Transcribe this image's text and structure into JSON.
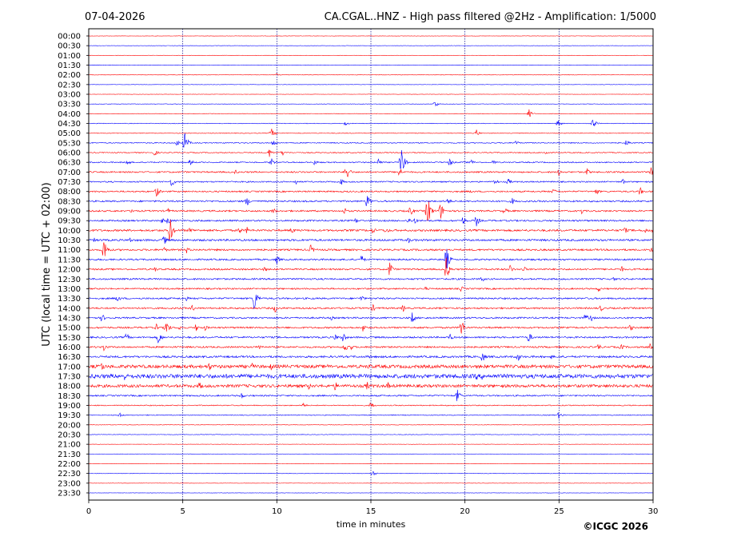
{
  "header": {
    "date": "07-04-2026",
    "title": "CA.CGAL..HNZ - High pass filtered @2Hz - Amplification: 1/5000"
  },
  "footer": {
    "copyright": "©ICGC 2026"
  },
  "chart_data": {
    "type": "line",
    "title": "CA.CGAL..HNZ - High pass filtered @2Hz - Amplification: 1/5000",
    "xlabel": "time in minutes",
    "ylabel": "UTC (local time = UTC + 02:00)",
    "xlim": [
      0,
      30
    ],
    "xticks": [
      0,
      5,
      10,
      15,
      20,
      25,
      30
    ],
    "grid": "vertical dotted at 5, 10, 15, 20, 25",
    "row_labels": [
      "00:00",
      "00:30",
      "01:00",
      "01:30",
      "02:00",
      "02:30",
      "03:00",
      "03:30",
      "04:00",
      "04:30",
      "05:00",
      "05:30",
      "06:00",
      "06:30",
      "07:00",
      "07:30",
      "08:00",
      "08:30",
      "09:00",
      "09:30",
      "10:00",
      "10:30",
      "11:00",
      "11:30",
      "12:00",
      "12:30",
      "13:00",
      "13:30",
      "14:00",
      "14:30",
      "15:00",
      "15:30",
      "16:00",
      "16:30",
      "17:00",
      "17:30",
      "18:00",
      "18:30",
      "19:00",
      "19:30",
      "20:00",
      "20:30",
      "21:00",
      "21:30",
      "22:00",
      "22:30",
      "23:00",
      "23:30"
    ],
    "series_colors": {
      "even_rows": "#ff0000",
      "odd_rows": "#0000ff"
    },
    "noise": [
      0.2,
      0.2,
      0.2,
      0.3,
      0.3,
      0.2,
      0.2,
      0.3,
      0.3,
      0.4,
      0.4,
      0.6,
      0.6,
      0.7,
      0.9,
      0.8,
      0.9,
      1.0,
      1.0,
      1.0,
      1.2,
      1.2,
      1.1,
      1.0,
      1.0,
      1.0,
      0.9,
      1.0,
      1.0,
      1.0,
      1.0,
      1.0,
      1.0,
      1.2,
      2.0,
      2.5,
      1.8,
      0.9,
      0.6,
      0.5,
      0.3,
      0.3,
      0.2,
      0.2,
      0.2,
      0.3,
      0.2,
      0.2
    ],
    "events": [
      {
        "row": 4,
        "t": 10.0,
        "a": 2
      },
      {
        "row": 7,
        "t": 18.4,
        "a": 5
      },
      {
        "row": 8,
        "t": 23.4,
        "a": 6
      },
      {
        "row": 9,
        "t": 13.6,
        "a": 4
      },
      {
        "row": 9,
        "t": 24.9,
        "a": 7
      },
      {
        "row": 9,
        "t": 26.8,
        "a": 8
      },
      {
        "row": 10,
        "t": 9.7,
        "a": 7
      },
      {
        "row": 10,
        "t": 20.6,
        "a": 5
      },
      {
        "row": 11,
        "t": 4.7,
        "a": 5
      },
      {
        "row": 11,
        "t": 5.1,
        "a": 14
      },
      {
        "row": 11,
        "t": 9.8,
        "a": 5
      },
      {
        "row": 11,
        "t": 22.7,
        "a": 4
      },
      {
        "row": 11,
        "t": 28.6,
        "a": 5
      },
      {
        "row": 12,
        "t": 3.5,
        "a": 5
      },
      {
        "row": 12,
        "t": 9.6,
        "a": 6
      },
      {
        "row": 12,
        "t": 10.3,
        "a": 4
      },
      {
        "row": 12,
        "t": 24.3,
        "a": 4
      },
      {
        "row": 13,
        "t": 2.0,
        "a": 6
      },
      {
        "row": 13,
        "t": 5.4,
        "a": 5
      },
      {
        "row": 13,
        "t": 9.7,
        "a": 6
      },
      {
        "row": 13,
        "t": 12.0,
        "a": 4
      },
      {
        "row": 13,
        "t": 15.4,
        "a": 6
      },
      {
        "row": 13,
        "t": 16.6,
        "a": 22
      },
      {
        "row": 13,
        "t": 19.2,
        "a": 6
      },
      {
        "row": 13,
        "t": 20.3,
        "a": 5
      },
      {
        "row": 13,
        "t": 21.5,
        "a": 4
      },
      {
        "row": 14,
        "t": 7.8,
        "a": 3
      },
      {
        "row": 14,
        "t": 13.7,
        "a": 14
      },
      {
        "row": 14,
        "t": 16.5,
        "a": 8
      },
      {
        "row": 14,
        "t": 25.0,
        "a": 5
      },
      {
        "row": 14,
        "t": 26.5,
        "a": 5
      },
      {
        "row": 14,
        "t": 29.9,
        "a": 6
      },
      {
        "row": 15,
        "t": 4.4,
        "a": 7
      },
      {
        "row": 15,
        "t": 11.0,
        "a": 4
      },
      {
        "row": 15,
        "t": 13.4,
        "a": 5
      },
      {
        "row": 15,
        "t": 21.6,
        "a": 5
      },
      {
        "row": 15,
        "t": 22.3,
        "a": 5
      },
      {
        "row": 15,
        "t": 28.4,
        "a": 4
      },
      {
        "row": 16,
        "t": 3.6,
        "a": 8
      },
      {
        "row": 16,
        "t": 20.3,
        "a": 3
      },
      {
        "row": 16,
        "t": 24.7,
        "a": 4
      },
      {
        "row": 16,
        "t": 27.0,
        "a": 5
      },
      {
        "row": 16,
        "t": 29.3,
        "a": 6
      },
      {
        "row": 17,
        "t": 8.4,
        "a": 7
      },
      {
        "row": 17,
        "t": 14.8,
        "a": 11
      },
      {
        "row": 17,
        "t": 19.1,
        "a": 5
      },
      {
        "row": 17,
        "t": 22.5,
        "a": 5
      },
      {
        "row": 18,
        "t": 2.3,
        "a": 4
      },
      {
        "row": 18,
        "t": 4.2,
        "a": 4
      },
      {
        "row": 18,
        "t": 9.8,
        "a": 5
      },
      {
        "row": 18,
        "t": 13.6,
        "a": 5
      },
      {
        "row": 18,
        "t": 17.1,
        "a": 7
      },
      {
        "row": 18,
        "t": 18.0,
        "a": 24
      },
      {
        "row": 18,
        "t": 18.7,
        "a": 12
      },
      {
        "row": 18,
        "t": 22.1,
        "a": 5
      },
      {
        "row": 18,
        "t": 26.2,
        "a": 4
      },
      {
        "row": 19,
        "t": 3.9,
        "a": 4
      },
      {
        "row": 19,
        "t": 4.2,
        "a": 6
      },
      {
        "row": 19,
        "t": 14.2,
        "a": 4
      },
      {
        "row": 19,
        "t": 17.0,
        "a": 5
      },
      {
        "row": 19,
        "t": 17.3,
        "a": 5
      },
      {
        "row": 19,
        "t": 19.9,
        "a": 6
      },
      {
        "row": 19,
        "t": 20.6,
        "a": 8
      },
      {
        "row": 20,
        "t": 4.3,
        "a": 20
      },
      {
        "row": 20,
        "t": 5.4,
        "a": 5
      },
      {
        "row": 20,
        "t": 8.0,
        "a": 5
      },
      {
        "row": 20,
        "t": 8.4,
        "a": 5
      },
      {
        "row": 20,
        "t": 10.8,
        "a": 5
      },
      {
        "row": 20,
        "t": 15.1,
        "a": 5
      },
      {
        "row": 20,
        "t": 15.8,
        "a": 5
      },
      {
        "row": 20,
        "t": 28.5,
        "a": 5
      },
      {
        "row": 20,
        "t": 29.6,
        "a": 4
      },
      {
        "row": 20,
        "t": 30.0,
        "a": 4
      },
      {
        "row": 21,
        "t": 0.3,
        "a": 3
      },
      {
        "row": 21,
        "t": 2.2,
        "a": 4
      },
      {
        "row": 21,
        "t": 4.0,
        "a": 7
      },
      {
        "row": 21,
        "t": 17.0,
        "a": 4
      },
      {
        "row": 22,
        "t": 0.8,
        "a": 18
      },
      {
        "row": 22,
        "t": 4.0,
        "a": 4
      },
      {
        "row": 22,
        "t": 5.2,
        "a": 5
      },
      {
        "row": 22,
        "t": 11.8,
        "a": 7
      },
      {
        "row": 22,
        "t": 29.9,
        "a": 4
      },
      {
        "row": 23,
        "t": 10.0,
        "a": 6
      },
      {
        "row": 23,
        "t": 14.5,
        "a": 6
      },
      {
        "row": 23,
        "t": 19.0,
        "a": 18
      },
      {
        "row": 24,
        "t": 3.5,
        "a": 4
      },
      {
        "row": 24,
        "t": 9.3,
        "a": 5
      },
      {
        "row": 24,
        "t": 16.0,
        "a": 11
      },
      {
        "row": 24,
        "t": 19.0,
        "a": 16
      },
      {
        "row": 24,
        "t": 22.4,
        "a": 6
      },
      {
        "row": 24,
        "t": 23.1,
        "a": 5
      },
      {
        "row": 24,
        "t": 28.3,
        "a": 5
      },
      {
        "row": 25,
        "t": 20.9,
        "a": 4
      },
      {
        "row": 25,
        "t": 27.9,
        "a": 3
      },
      {
        "row": 26,
        "t": 17.9,
        "a": 3
      },
      {
        "row": 26,
        "t": 19.8,
        "a": 4
      },
      {
        "row": 26,
        "t": 27.1,
        "a": 4
      },
      {
        "row": 27,
        "t": 1.5,
        "a": 6
      },
      {
        "row": 27,
        "t": 5.2,
        "a": 3
      },
      {
        "row": 27,
        "t": 8.8,
        "a": 18
      },
      {
        "row": 27,
        "t": 14.5,
        "a": 5
      },
      {
        "row": 28,
        "t": 5.5,
        "a": 5
      },
      {
        "row": 28,
        "t": 9.9,
        "a": 6
      },
      {
        "row": 28,
        "t": 15.1,
        "a": 5
      },
      {
        "row": 28,
        "t": 16.7,
        "a": 5
      },
      {
        "row": 28,
        "t": 27.2,
        "a": 5
      },
      {
        "row": 29,
        "t": 0.7,
        "a": 6
      },
      {
        "row": 29,
        "t": 12.9,
        "a": 3
      },
      {
        "row": 29,
        "t": 17.2,
        "a": 8
      },
      {
        "row": 29,
        "t": 26.4,
        "a": 6
      },
      {
        "row": 29,
        "t": 26.7,
        "a": 5
      },
      {
        "row": 30,
        "t": 4.1,
        "a": 12
      },
      {
        "row": 30,
        "t": 3.6,
        "a": 5
      },
      {
        "row": 30,
        "t": 4.8,
        "a": 4
      },
      {
        "row": 30,
        "t": 5.7,
        "a": 5
      },
      {
        "row": 30,
        "t": 6.2,
        "a": 4
      },
      {
        "row": 30,
        "t": 14.6,
        "a": 6
      },
      {
        "row": 30,
        "t": 19.8,
        "a": 13
      },
      {
        "row": 30,
        "t": 28.8,
        "a": 5
      },
      {
        "row": 31,
        "t": 2.0,
        "a": 6
      },
      {
        "row": 31,
        "t": 3.7,
        "a": 10
      },
      {
        "row": 31,
        "t": 13.1,
        "a": 5
      },
      {
        "row": 31,
        "t": 13.5,
        "a": 8
      },
      {
        "row": 31,
        "t": 19.2,
        "a": 5
      },
      {
        "row": 31,
        "t": 23.4,
        "a": 8
      },
      {
        "row": 32,
        "t": 0.8,
        "a": 6
      },
      {
        "row": 32,
        "t": 9.1,
        "a": 5
      },
      {
        "row": 32,
        "t": 13.6,
        "a": 8
      },
      {
        "row": 32,
        "t": 13.9,
        "a": 5
      },
      {
        "row": 32,
        "t": 27.1,
        "a": 5
      },
      {
        "row": 32,
        "t": 28.3,
        "a": 5
      },
      {
        "row": 32,
        "t": 29.8,
        "a": 6
      },
      {
        "row": 33,
        "t": 14.9,
        "a": 3
      },
      {
        "row": 33,
        "t": 20.9,
        "a": 9
      },
      {
        "row": 33,
        "t": 22.8,
        "a": 7
      },
      {
        "row": 33,
        "t": 24.6,
        "a": 3
      },
      {
        "row": 34,
        "t": 0.7,
        "a": 7
      },
      {
        "row": 34,
        "t": 2.4,
        "a": 3
      },
      {
        "row": 34,
        "t": 6.4,
        "a": 6
      },
      {
        "row": 34,
        "t": 8.7,
        "a": 5
      },
      {
        "row": 34,
        "t": 9.7,
        "a": 5
      },
      {
        "row": 34,
        "t": 12.7,
        "a": 3
      },
      {
        "row": 34,
        "t": 14.9,
        "a": 5
      },
      {
        "row": 35,
        "t": 1.9,
        "a": 6
      },
      {
        "row": 35,
        "t": 7.5,
        "a": 3
      },
      {
        "row": 35,
        "t": 20.6,
        "a": 6
      },
      {
        "row": 35,
        "t": 20.9,
        "a": 5
      },
      {
        "row": 36,
        "t": 5.9,
        "a": 6
      },
      {
        "row": 36,
        "t": 11.7,
        "a": 5
      },
      {
        "row": 36,
        "t": 13.1,
        "a": 6
      },
      {
        "row": 36,
        "t": 14.8,
        "a": 6
      },
      {
        "row": 36,
        "t": 15.9,
        "a": 5
      },
      {
        "row": 37,
        "t": 8.1,
        "a": 5
      },
      {
        "row": 37,
        "t": 19.6,
        "a": 9
      },
      {
        "row": 38,
        "t": 11.4,
        "a": 4
      },
      {
        "row": 38,
        "t": 15.0,
        "a": 5
      },
      {
        "row": 39,
        "t": 1.6,
        "a": 5
      },
      {
        "row": 39,
        "t": 25.0,
        "a": 5
      },
      {
        "row": 45,
        "t": 15.1,
        "a": 5
      }
    ]
  }
}
